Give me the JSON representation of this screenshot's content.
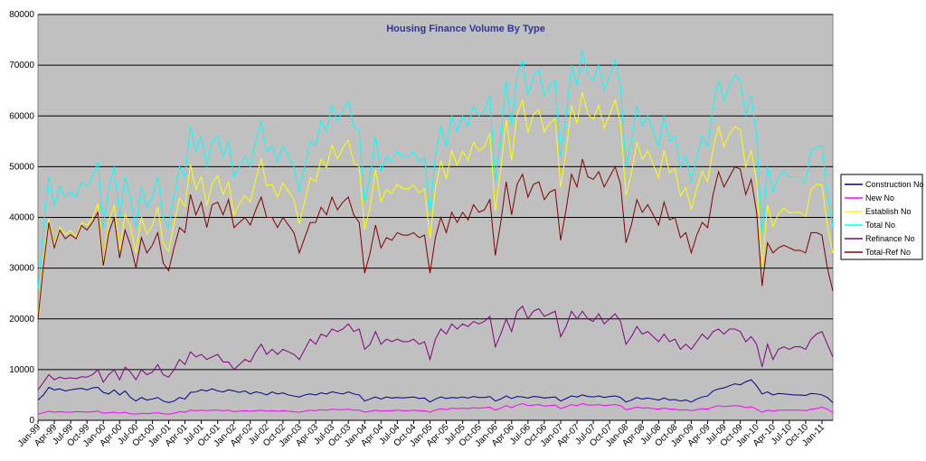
{
  "chart_data": {
    "type": "line",
    "title": "Housing Finance Volume By Type",
    "categories": [
      "Jan-99",
      null,
      null,
      "Apr-99",
      null,
      null,
      "Jul-99",
      null,
      null,
      "Oct-99",
      null,
      null,
      "Jan-00",
      null,
      null,
      "Apr-00",
      null,
      null,
      "Jul-00",
      null,
      null,
      "Oct-00",
      null,
      null,
      "Jan-01",
      null,
      null,
      "Apr-01",
      null,
      null,
      "Jul-01",
      null,
      null,
      "Oct-01",
      null,
      null,
      "Jan-02",
      null,
      null,
      "Apr-02",
      null,
      null,
      "Jul-02",
      null,
      null,
      "Oct-02",
      null,
      null,
      "Jan-03",
      null,
      null,
      "Apr-03",
      null,
      null,
      "Jul-03",
      null,
      null,
      "Oct-03",
      null,
      null,
      "Jan-04",
      null,
      null,
      "Apr-04",
      null,
      null,
      "Jul-04",
      null,
      null,
      "Oct-04",
      null,
      null,
      "Jan-05",
      null,
      null,
      "Apr-05",
      null,
      null,
      "Jul-05",
      null,
      null,
      "Oct-05",
      null,
      null,
      "Jan-06",
      null,
      null,
      "Apr-06",
      null,
      null,
      "Jul-06",
      null,
      null,
      "Oct-06",
      null,
      null,
      "Jan-07",
      null,
      null,
      "Apr-07",
      null,
      null,
      "Jul-07",
      null,
      null,
      "Oct-07",
      null,
      null,
      "Jan-08",
      null,
      null,
      "Apr-08",
      null,
      null,
      "Jul-08",
      null,
      null,
      "Oct-08",
      null,
      null,
      "Jan-09",
      null,
      null,
      "Apr-09",
      null,
      null,
      "Jul-09",
      null,
      null,
      "Oct-09",
      null,
      null,
      "Jan-10",
      null,
      null,
      "Apr-10",
      null,
      null,
      "Jul-10",
      null,
      null,
      "Oct-10",
      null,
      null,
      "Jan-11",
      null,
      null
    ],
    "series": [
      {
        "name": "Construction No",
        "color": "#000080",
        "values": [
          4000,
          5000,
          6500,
          6000,
          6200,
          5800,
          6000,
          6200,
          6300,
          6000,
          6400,
          6500,
          5500,
          5200,
          6000,
          5000,
          5800,
          4500,
          3800,
          4500,
          4000,
          4200,
          4500,
          3800,
          3500,
          3800,
          4500,
          4200,
          5500,
          5600,
          6000,
          5800,
          6200,
          5800,
          5600,
          6000,
          5800,
          5500,
          5800,
          5200,
          5600,
          5400,
          5000,
          5600,
          5200,
          5400,
          5000,
          4800,
          4600,
          5000,
          5200,
          5000,
          5400,
          5200,
          5600,
          5400,
          5200,
          5600,
          5200,
          5000,
          3800,
          4200,
          4600,
          4200,
          4600,
          4400,
          4500,
          4400,
          4500,
          4600,
          4300,
          4400,
          3600,
          4200,
          4600,
          4300,
          4500,
          4400,
          4600,
          4400,
          4700,
          4500,
          4500,
          4700,
          3800,
          4200,
          4800,
          4300,
          4700,
          4600,
          4400,
          4700,
          4600,
          4400,
          4500,
          4600,
          3800,
          4300,
          4800,
          4600,
          5000,
          4700,
          4600,
          4800,
          4500,
          4700,
          4800,
          4500,
          3600,
          4000,
          4500,
          4200,
          4400,
          4200,
          4000,
          4400,
          4000,
          4100,
          3800,
          4000,
          3600,
          4200,
          4600,
          4800,
          5800,
          6200,
          6400,
          6800,
          7200,
          7000,
          7600,
          8000,
          6800,
          5200,
          5600,
          5000,
          5300,
          5200,
          5100,
          5000,
          5000,
          4900,
          5300,
          5200,
          5000,
          4500,
          3500
        ]
      },
      {
        "name": "New No",
        "color": "#ff00ff",
        "values": [
          1200,
          1500,
          1800,
          1600,
          1700,
          1600,
          1600,
          1700,
          1700,
          1600,
          1700,
          1800,
          1400,
          1500,
          1600,
          1400,
          1600,
          1300,
          1200,
          1400,
          1300,
          1400,
          1500,
          1300,
          1200,
          1400,
          1700,
          1600,
          2000,
          1900,
          2000,
          1900,
          2000,
          2000,
          1900,
          2000,
          1700,
          1800,
          1900,
          1800,
          1900,
          2000,
          1800,
          1900,
          1800,
          1900,
          1800,
          1700,
          1600,
          1800,
          2000,
          1900,
          2100,
          2000,
          2200,
          2100,
          2100,
          2200,
          2000,
          2000,
          1600,
          1800,
          2000,
          1800,
          1900,
          1900,
          2000,
          1900,
          1900,
          2000,
          1900,
          1900,
          1600,
          2000,
          2300,
          2100,
          2400,
          2300,
          2400,
          2300,
          2500,
          2400,
          2500,
          2600,
          2000,
          2400,
          2900,
          2500,
          3000,
          3300,
          2900,
          3000,
          3100,
          2800,
          2900,
          3000,
          2300,
          2700,
          3100,
          2900,
          3300,
          3000,
          3000,
          3100,
          2900,
          3000,
          3100,
          2900,
          2100,
          2300,
          2600,
          2400,
          2500,
          2300,
          2200,
          2400,
          2200,
          2200,
          2000,
          2100,
          1900,
          2100,
          2300,
          2200,
          2600,
          2900,
          2700,
          2800,
          2900,
          2800,
          2500,
          2700,
          2200,
          1600,
          2000,
          1800,
          2000,
          2000,
          2000,
          2000,
          2000,
          1900,
          2200,
          2300,
          2600,
          2200,
          1500
        ]
      },
      {
        "name": "Establish No",
        "color": "#ffff00",
        "values": [
          20800,
          31500,
          39700,
          34400,
          38100,
          36600,
          37400,
          36100,
          39000,
          38400,
          39900,
          42700,
          31100,
          39300,
          42400,
          33600,
          40600,
          38200,
          33000,
          40100,
          36700,
          38400,
          42000,
          34900,
          33300,
          38800,
          43800,
          42200,
          50500,
          45500,
          48000,
          42300,
          46800,
          48200,
          44500,
          47000,
          40500,
          42700,
          44300,
          43000,
          47500,
          51600,
          46200,
          46500,
          44000,
          46700,
          45200,
          43500,
          38800,
          43200,
          47800,
          47100,
          51500,
          49800,
          54200,
          51500,
          53700,
          55200,
          50800,
          50000,
          37600,
          42000,
          49400,
          43000,
          45500,
          44700,
          46500,
          45700,
          45600,
          46400,
          44800,
          45700,
          35800,
          45800,
          51100,
          47600,
          53100,
          50300,
          53000,
          51300,
          54800,
          53100,
          54000,
          56700,
          41200,
          49400,
          59300,
          51200,
          60300,
          63100,
          56700,
          60300,
          61300,
          56800,
          58600,
          59400,
          45900,
          53000,
          62100,
          58500,
          64700,
          60300,
          59400,
          62100,
          57600,
          60300,
          63100,
          58600,
          44300,
          48700,
          54900,
          51400,
          53100,
          50500,
          47800,
          53200,
          48800,
          49700,
          44200,
          45900,
          41500,
          45700,
          49100,
          47000,
          53600,
          57900,
          53900,
          56400,
          57900,
          57200,
          49900,
          53300,
          47000,
          30200,
          42400,
          38200,
          40700,
          41800,
          40900,
          41000,
          41000,
          40200,
          45500,
          46500,
          46400,
          38300,
          33000
        ]
      },
      {
        "name": "Total No",
        "color": "#00ffff",
        "values": [
          26000,
          38000,
          48000,
          42000,
          46000,
          44000,
          45000,
          44000,
          47000,
          46000,
          48000,
          51000,
          38000,
          46000,
          50000,
          40000,
          48000,
          44000,
          38000,
          46000,
          42000,
          44000,
          48000,
          40000,
          38000,
          44000,
          50000,
          48000,
          58000,
          53000,
          56000,
          50000,
          55000,
          56000,
          52000,
          55000,
          48000,
          50000,
          52000,
          50000,
          55000,
          59000,
          53000,
          54000,
          51000,
          54000,
          52000,
          50000,
          45000,
          50000,
          55000,
          54000,
          59000,
          57000,
          62000,
          59000,
          61000,
          63000,
          58000,
          57000,
          43000,
          48000,
          56000,
          49000,
          52000,
          51000,
          53000,
          52000,
          52000,
          53000,
          51000,
          52000,
          41000,
          52000,
          58000,
          54000,
          60000,
          57000,
          60000,
          58000,
          62000,
          60000,
          61000,
          64000,
          47000,
          56000,
          67000,
          58000,
          68000,
          71000,
          64000,
          68000,
          69000,
          64000,
          66000,
          67000,
          52000,
          60000,
          70000,
          66000,
          73000,
          68000,
          67000,
          70000,
          65000,
          68000,
          71000,
          66000,
          50000,
          55000,
          62000,
          58000,
          60000,
          57000,
          54000,
          60000,
          55000,
          56000,
          50000,
          52000,
          47000,
          52000,
          56000,
          54000,
          62000,
          67000,
          63000,
          66000,
          68000,
          67000,
          60000,
          64000,
          56000,
          37000,
          50000,
          45000,
          48000,
          49000,
          48000,
          48000,
          48000,
          47000,
          53000,
          54000,
          54000,
          45000,
          38000
        ]
      },
      {
        "name": "Refinance No",
        "color": "#800080",
        "values": [
          6000,
          7500,
          9000,
          8000,
          8500,
          8200,
          8400,
          8200,
          8600,
          8500,
          9000,
          10000,
          7500,
          9000,
          10000,
          8000,
          10500,
          9500,
          8000,
          10000,
          9000,
          9500,
          11000,
          9000,
          8500,
          10000,
          12000,
          11000,
          13500,
          12500,
          13000,
          12000,
          12500,
          13000,
          11500,
          11500,
          10000,
          11000,
          12000,
          11500,
          13500,
          15000,
          13000,
          14000,
          13000,
          14000,
          13500,
          13000,
          12000,
          14000,
          16000,
          15000,
          17000,
          16500,
          18000,
          17500,
          18000,
          19000,
          17500,
          18000,
          14000,
          15000,
          17500,
          15000,
          16000,
          15500,
          16000,
          15500,
          15500,
          16000,
          15000,
          15500,
          12000,
          16000,
          18000,
          17000,
          19000,
          18000,
          19000,
          18500,
          19500,
          19000,
          19500,
          20500,
          14500,
          17000,
          20000,
          17500,
          21500,
          22500,
          20000,
          21500,
          22000,
          20500,
          21000,
          21500,
          16500,
          18500,
          21500,
          20000,
          21500,
          20000,
          19500,
          21000,
          19000,
          20000,
          21000,
          19500,
          15000,
          16500,
          18500,
          17000,
          17500,
          16500,
          15500,
          17000,
          15500,
          16000,
          14000,
          15000,
          14000,
          15500,
          17000,
          16000,
          17500,
          18000,
          17000,
          18000,
          18000,
          17500,
          15500,
          16500,
          15000,
          10500,
          15000,
          12000,
          14000,
          14500,
          14000,
          14500,
          14500,
          14000,
          16000,
          17000,
          17500,
          15000,
          12500
        ]
      },
      {
        "name": "Total-Ref No",
        "color": "#800000",
        "values": [
          20000,
          30500,
          39000,
          34000,
          37500,
          35800,
          36600,
          35800,
          38400,
          37500,
          39000,
          41000,
          30500,
          37000,
          40000,
          32000,
          37500,
          34500,
          30000,
          36000,
          33000,
          34500,
          37000,
          31000,
          29500,
          34000,
          38000,
          37000,
          44500,
          40500,
          43000,
          38000,
          42500,
          43000,
          40500,
          43500,
          38000,
          39000,
          40000,
          38500,
          41500,
          44000,
          40000,
          40000,
          38000,
          40000,
          38500,
          37000,
          33000,
          36000,
          39000,
          39000,
          42000,
          40500,
          44000,
          41500,
          43000,
          44000,
          40500,
          39000,
          29000,
          33000,
          38500,
          34000,
          36000,
          35500,
          37000,
          36500,
          36500,
          37000,
          36000,
          36500,
          29000,
          36000,
          40000,
          37000,
          41000,
          39000,
          41000,
          39500,
          42500,
          41000,
          41500,
          43500,
          32500,
          39000,
          47000,
          40500,
          46500,
          48500,
          44000,
          46500,
          47000,
          43500,
          45000,
          45500,
          35500,
          41500,
          48500,
          46000,
          51500,
          48000,
          47500,
          49000,
          46000,
          48000,
          50000,
          46500,
          35000,
          38500,
          43500,
          41000,
          42500,
          40500,
          38500,
          43000,
          39500,
          40000,
          36000,
          37000,
          33000,
          36500,
          39000,
          38000,
          44500,
          49000,
          46000,
          48000,
          50000,
          49500,
          44500,
          47500,
          41000,
          26500,
          35000,
          33000,
          34000,
          34500,
          34000,
          33500,
          33500,
          33000,
          37000,
          37000,
          36500,
          30000,
          25500
        ]
      }
    ],
    "ylim": [
      0,
      80000
    ],
    "yticks": [
      0,
      10000,
      20000,
      30000,
      40000,
      50000,
      60000,
      70000,
      80000
    ],
    "grid": true,
    "legend": "right"
  }
}
